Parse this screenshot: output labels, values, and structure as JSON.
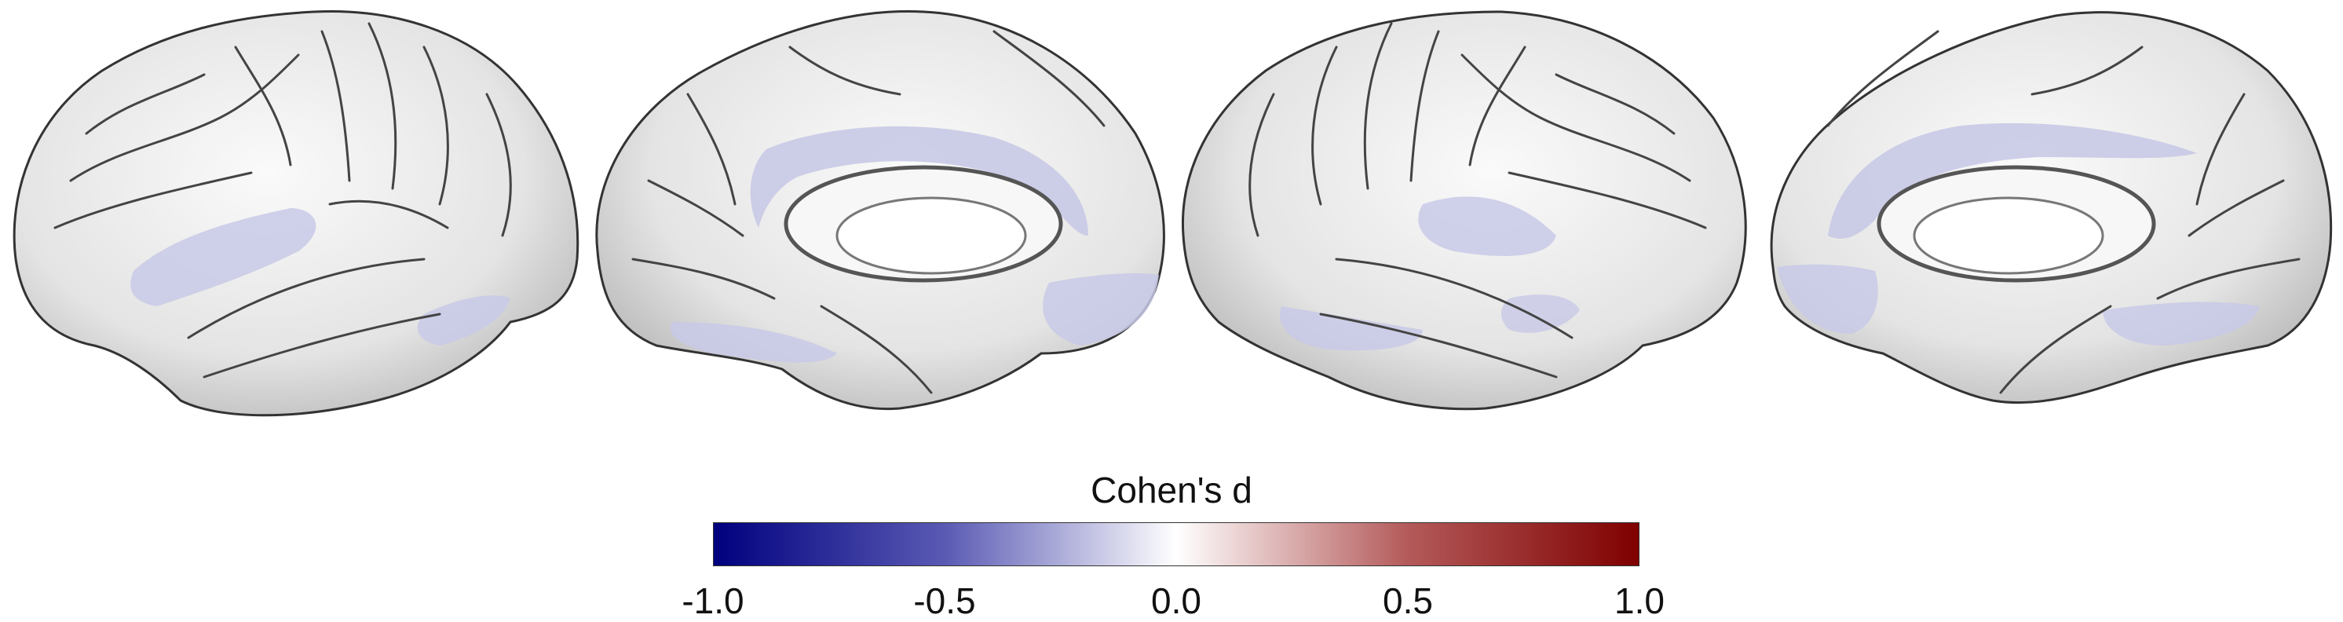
{
  "figure": {
    "views": [
      {
        "name": "left-lateral",
        "hemisphere": "left",
        "view": "lateral"
      },
      {
        "name": "left-medial",
        "hemisphere": "left",
        "view": "medial"
      },
      {
        "name": "right-lateral",
        "hemisphere": "right",
        "view": "lateral"
      },
      {
        "name": "right-medial",
        "hemisphere": "right",
        "view": "medial"
      }
    ],
    "effect_color": "#c8c9e6",
    "surface_color": "#ececec"
  },
  "colorbar": {
    "title": "Cohen's d",
    "min": -1.0,
    "max": 1.0,
    "colors": [
      "#00007f",
      "#5a5ab4",
      "#ffffff",
      "#b45a5a",
      "#7f0000"
    ],
    "ticks": [
      {
        "value": -1.0,
        "label": "-1.0"
      },
      {
        "value": -0.5,
        "label": "-0.5"
      },
      {
        "value": 0.0,
        "label": "0.0"
      },
      {
        "value": 0.5,
        "label": "0.5"
      },
      {
        "value": 1.0,
        "label": "1.0"
      }
    ]
  }
}
